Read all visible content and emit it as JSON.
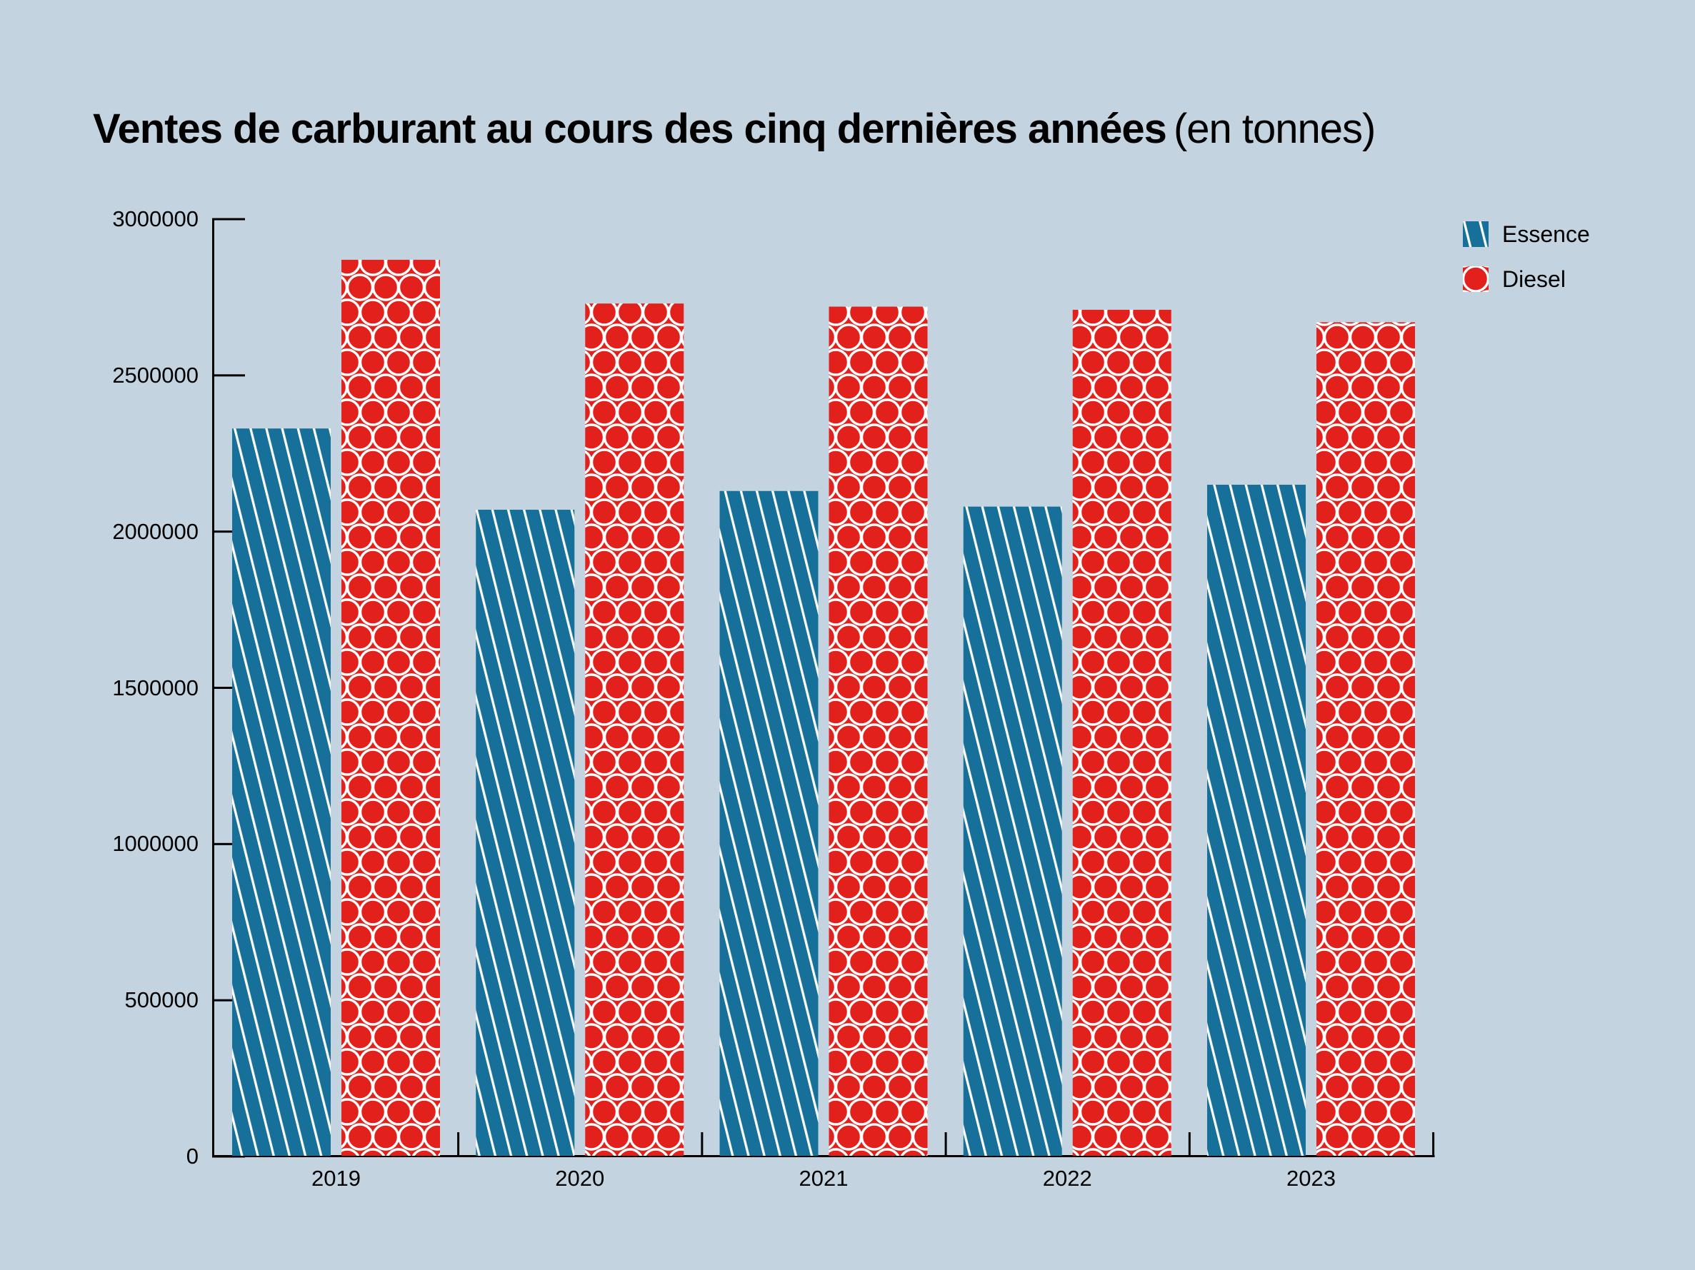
{
  "title": {
    "bold": "Ventes de carburant au cours des cinq dernières années",
    "normal": "(en tonnes)"
  },
  "colors": {
    "background": "#c3d4e0",
    "essence": "#17709a",
    "diesel": "#e3211c",
    "pattern_lines": "#ffffff",
    "axis": "#000000",
    "text": "#000000"
  },
  "legend": {
    "position": "top-right",
    "items": [
      {
        "label": "Essence",
        "pattern": "diagonal-stripes",
        "color": "#17709a"
      },
      {
        "label": "Diesel",
        "pattern": "circle-grid",
        "color": "#e3211c"
      }
    ]
  },
  "chart_data": {
    "type": "bar",
    "title": "Ventes de carburant au cours des cinq dernières années (en tonnes)",
    "unit": "tonnes",
    "xlabel": "",
    "ylabel": "",
    "categories": [
      "2019",
      "2020",
      "2021",
      "2022",
      "2023"
    ],
    "series": [
      {
        "name": "Essence",
        "values": [
          2330000,
          2070000,
          2130000,
          2080000,
          2150000
        ]
      },
      {
        "name": "Diesel",
        "values": [
          2870000,
          2730000,
          2720000,
          2710000,
          2670000
        ]
      }
    ],
    "ylim": [
      0,
      3000000
    ],
    "ytick_step": 500000,
    "ytick_values": [
      0,
      500000,
      1000000,
      1500000,
      2000000,
      2500000,
      3000000
    ],
    "ytick_labels": [
      "0",
      "500000",
      "1000000",
      "1500000",
      "2000000",
      "2500000",
      "3000000"
    ],
    "grid": false,
    "legend_position": "top-right"
  }
}
